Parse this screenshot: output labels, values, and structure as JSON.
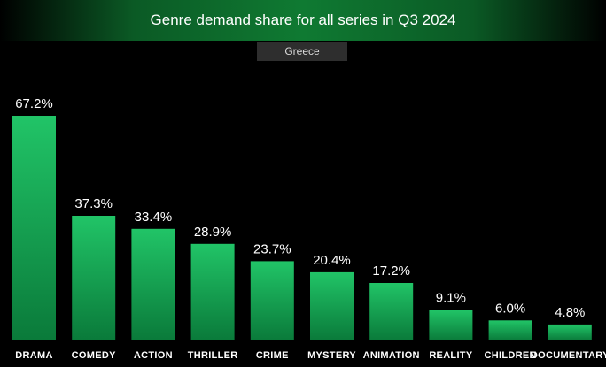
{
  "colors": {
    "bar_top": "#21c467",
    "bar_bottom": "#0a7a3a",
    "background": "#000000",
    "title_band": "#0f7a32"
  },
  "chart_data": {
    "type": "bar",
    "title": "Genre demand share for all series in Q3 2024",
    "subtitle": "Greece",
    "categories": [
      "DRAMA",
      "COMEDY",
      "ACTION",
      "THRILLER",
      "CRIME",
      "MYSTERY",
      "ANIMATION",
      "REALITY",
      "CHILDREN",
      "DOCUMENTARY"
    ],
    "values": [
      67.2,
      37.3,
      33.4,
      28.9,
      23.7,
      20.4,
      17.2,
      9.1,
      6.0,
      4.8
    ],
    "value_labels": [
      "67.2%",
      "37.3%",
      "33.4%",
      "28.9%",
      "23.7%",
      "20.4%",
      "17.2%",
      "9.1%",
      "6.0%",
      "4.8%"
    ],
    "unit": "%",
    "ylim": [
      0,
      67.2
    ],
    "grid": false,
    "legend": "none"
  }
}
